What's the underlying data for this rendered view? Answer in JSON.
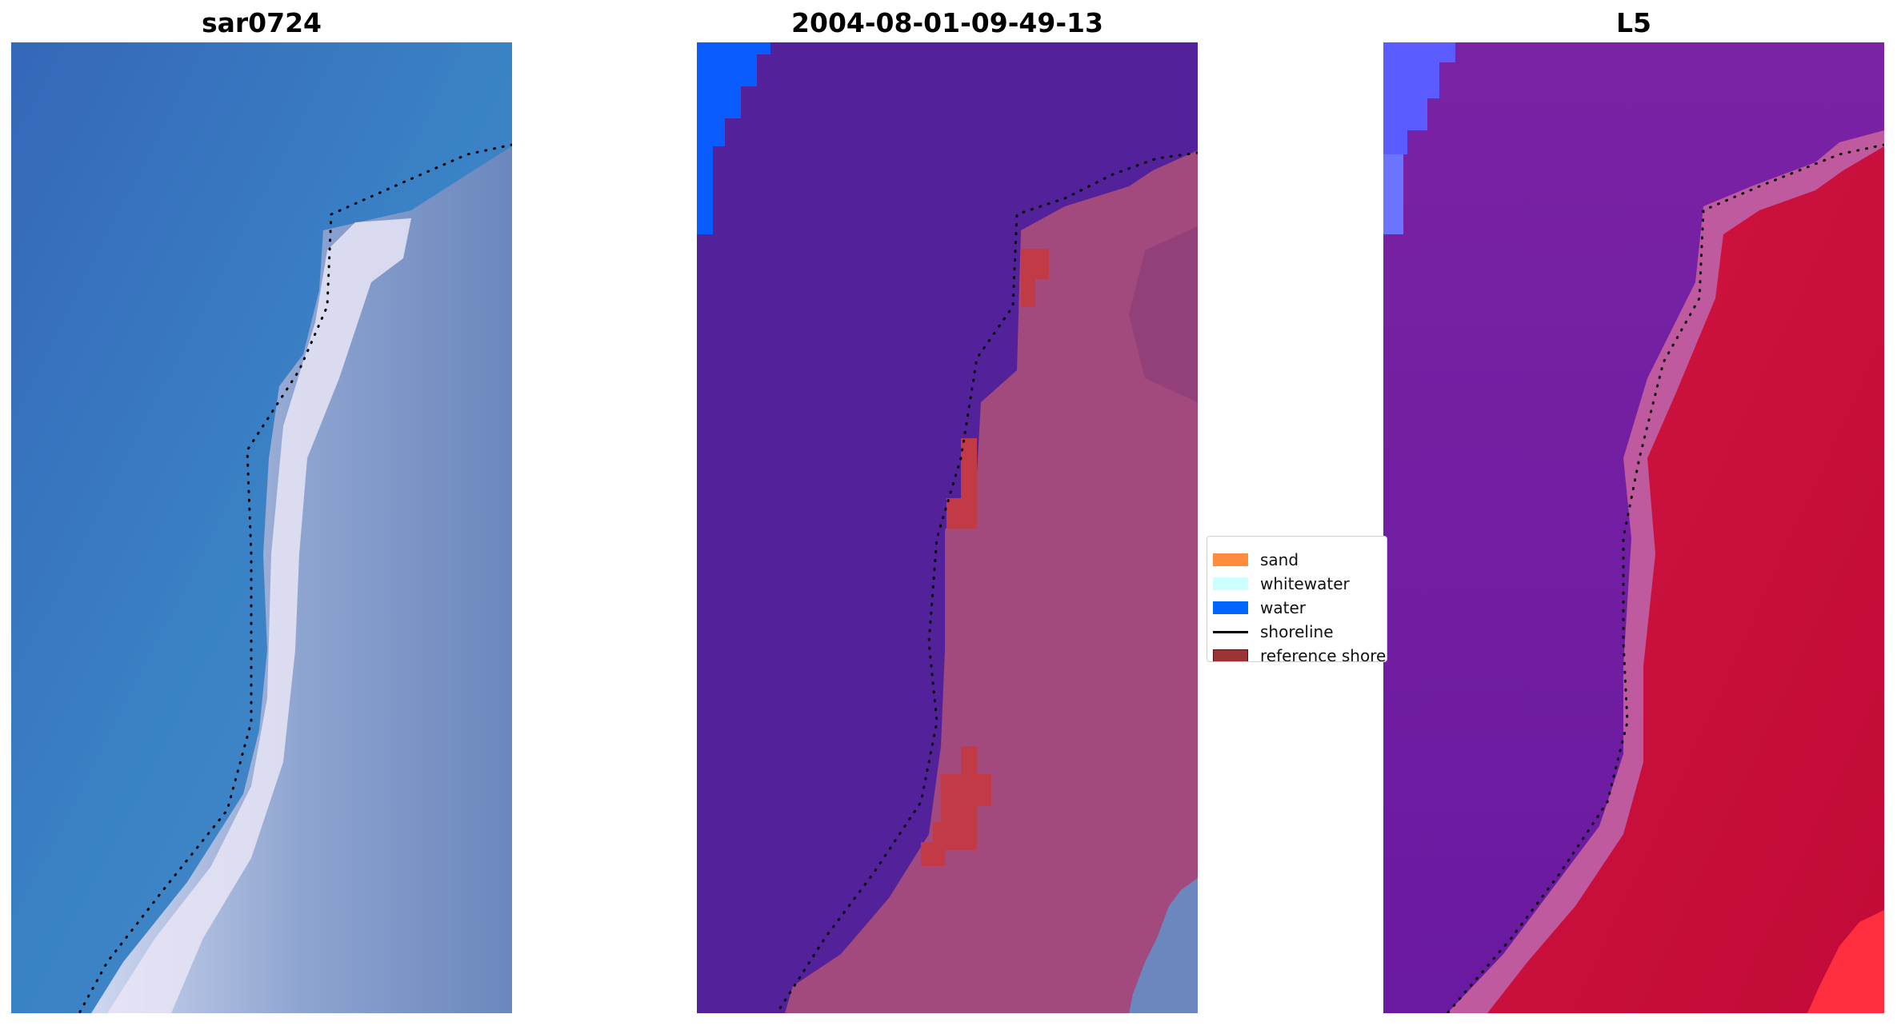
{
  "panels": [
    {
      "title": "sar0724"
    },
    {
      "title": "2004-08-01-09-49-13"
    },
    {
      "title": "L5"
    }
  ],
  "legend": {
    "items": [
      {
        "label": "sand",
        "color": "#ff8c3c",
        "kind": "patch"
      },
      {
        "label": "whitewater",
        "color": "#ccffff",
        "kind": "patch"
      },
      {
        "label": "water",
        "color": "#0066ff",
        "kind": "patch"
      },
      {
        "label": "shoreline",
        "color": "#000000",
        "kind": "line"
      },
      {
        "label": "reference shoreline",
        "color": "#9a3436",
        "kind": "patch"
      }
    ]
  },
  "colors": {
    "rgb_water": "#3a78c4",
    "rgb_land": "#7c93c4",
    "rgb_beach": "#ece8f7",
    "class_water": "#53219a",
    "class_land": "#a2497e",
    "class_reference": "#c23a46",
    "class_ocean": "#0b5cff",
    "ndwi_low": "#6a1aa0",
    "ndwi_high": "#c80a3c",
    "ndwi_blue": "#5a5cff"
  }
}
